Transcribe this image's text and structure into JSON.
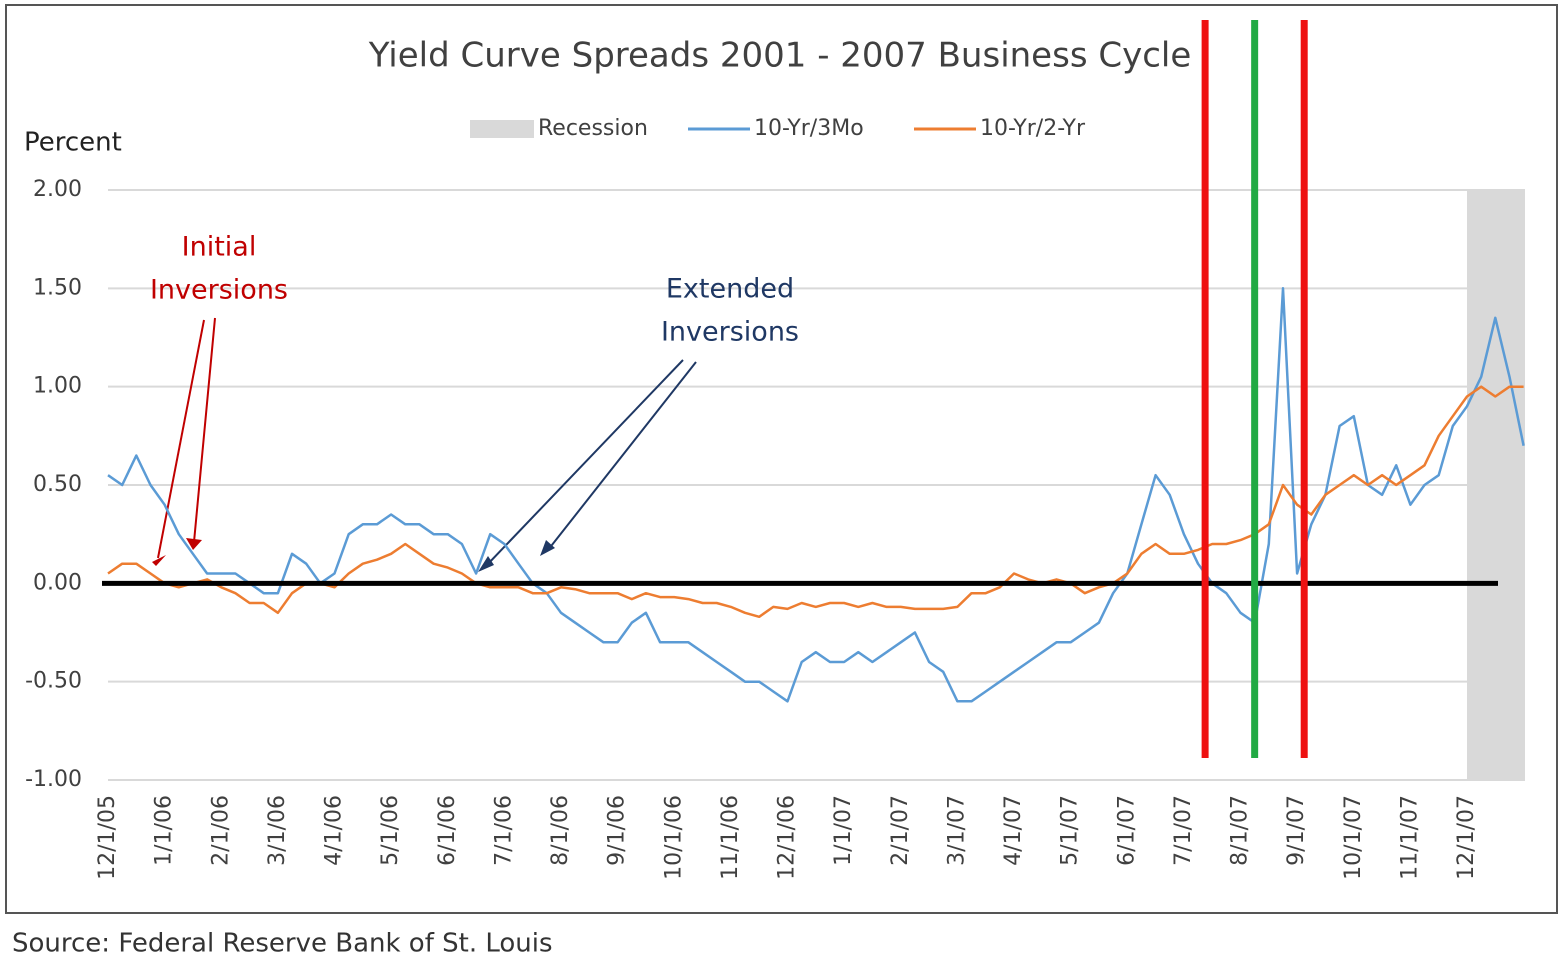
{
  "chart_data": {
    "type": "line",
    "title": "Yield Curve Spreads  2001 - 2007 Business Cycle",
    "y_label": "Percent",
    "source": "Source: Federal Reserve Bank of St. Louis",
    "categories": [
      "12/1/05",
      null,
      null,
      null,
      "1/1/06",
      null,
      null,
      null,
      "2/1/06",
      null,
      null,
      null,
      "3/1/06",
      null,
      null,
      null,
      "4/1/06",
      null,
      null,
      null,
      "5/1/06",
      null,
      null,
      null,
      "6/1/06",
      null,
      null,
      null,
      "7/1/06",
      null,
      null,
      null,
      "8/1/06",
      null,
      null,
      null,
      "9/1/06",
      null,
      null,
      null,
      "10/1/06",
      null,
      null,
      null,
      "11/1/06",
      null,
      null,
      null,
      "12/1/06",
      null,
      null,
      null,
      "1/1/07",
      null,
      null,
      null,
      "2/1/07",
      null,
      null,
      null,
      "3/1/07",
      null,
      null,
      null,
      "4/1/07",
      null,
      null,
      null,
      "5/1/07",
      null,
      null,
      null,
      "6/1/07",
      null,
      null,
      null,
      "7/1/07",
      null,
      null,
      null,
      "8/1/07",
      null,
      null,
      null,
      "9/1/07",
      null,
      null,
      null,
      "10/1/07",
      null,
      null,
      null,
      "11/1/07",
      null,
      null,
      null,
      "12/1/07",
      null,
      null,
      null,
      null
    ],
    "series": [
      {
        "name": "10-Yr/3Mo",
        "color": "#5b9bd5",
        "values": [
          0.55,
          0.5,
          0.65,
          0.5,
          0.4,
          0.25,
          0.15,
          0.05,
          0.05,
          0.05,
          0.0,
          -0.05,
          -0.05,
          0.15,
          0.1,
          0.0,
          0.05,
          0.25,
          0.3,
          0.3,
          0.35,
          0.3,
          0.3,
          0.25,
          0.25,
          0.2,
          0.05,
          0.25,
          0.2,
          0.1,
          0.0,
          -0.05,
          -0.15,
          -0.2,
          -0.25,
          -0.3,
          -0.3,
          -0.2,
          -0.15,
          -0.3,
          -0.3,
          -0.3,
          -0.35,
          -0.4,
          -0.45,
          -0.5,
          -0.5,
          -0.55,
          -0.6,
          -0.4,
          -0.35,
          -0.4,
          -0.4,
          -0.35,
          -0.4,
          -0.35,
          -0.3,
          -0.25,
          -0.4,
          -0.45,
          -0.6,
          -0.6,
          -0.55,
          -0.5,
          -0.45,
          -0.4,
          -0.35,
          -0.3,
          -0.3,
          -0.25,
          -0.2,
          -0.05,
          0.05,
          0.3,
          0.55,
          0.45,
          0.25,
          0.1,
          0.0,
          -0.05,
          -0.15,
          -0.2,
          0.2,
          1.5,
          0.05,
          0.3,
          0.45,
          0.8,
          0.85,
          0.5,
          0.45,
          0.6,
          0.4,
          0.5,
          0.55,
          0.8,
          0.9,
          1.05,
          1.35,
          1.05,
          0.7
        ]
      },
      {
        "name": "10-Yr/2-Yr",
        "color": "#ed7d31",
        "values": [
          0.05,
          0.1,
          0.1,
          0.05,
          0.0,
          -0.02,
          0.0,
          0.02,
          -0.02,
          -0.05,
          -0.1,
          -0.1,
          -0.15,
          -0.05,
          0.0,
          0.0,
          -0.02,
          0.05,
          0.1,
          0.12,
          0.15,
          0.2,
          0.15,
          0.1,
          0.08,
          0.05,
          0.0,
          -0.02,
          -0.02,
          -0.02,
          -0.05,
          -0.05,
          -0.02,
          -0.03,
          -0.05,
          -0.05,
          -0.05,
          -0.08,
          -0.05,
          -0.07,
          -0.07,
          -0.08,
          -0.1,
          -0.1,
          -0.12,
          -0.15,
          -0.17,
          -0.12,
          -0.13,
          -0.1,
          -0.12,
          -0.1,
          -0.1,
          -0.12,
          -0.1,
          -0.12,
          -0.12,
          -0.13,
          -0.13,
          -0.13,
          -0.12,
          -0.05,
          -0.05,
          -0.02,
          0.05,
          0.02,
          0.0,
          0.02,
          0.0,
          -0.05,
          -0.02,
          0.0,
          0.05,
          0.15,
          0.2,
          0.15,
          0.15,
          0.17,
          0.2,
          0.2,
          0.22,
          0.25,
          0.3,
          0.5,
          0.4,
          0.35,
          0.45,
          0.5,
          0.55,
          0.5,
          0.55,
          0.5,
          0.55,
          0.6,
          0.75,
          0.85,
          0.95,
          1.0,
          0.95,
          1.0,
          1.0
        ]
      }
    ],
    "recession": {
      "name": "Recession",
      "color": "#d9d9d9",
      "start": "12/1/07"
    },
    "ylim": [
      -1,
      2
    ],
    "yticks": [
      {
        "value": -1,
        "label": "-1.00"
      },
      {
        "value": -0.5,
        "label": "-0.50"
      },
      {
        "value": 0,
        "label": "0.00"
      },
      {
        "value": 0.5,
        "label": "0.50"
      },
      {
        "value": 1,
        "label": "1.00"
      },
      {
        "value": 1.5,
        "label": "1.50"
      },
      {
        "value": 2,
        "label": "2.00"
      }
    ],
    "grid": true,
    "annotations": [
      {
        "lines": [
          "Initial",
          "Inversions"
        ],
        "color": "#c00000"
      },
      {
        "lines": [
          "Extended",
          "Inversions"
        ],
        "color": "#1f3864"
      }
    ],
    "markers": [
      {
        "x_index": 77.5,
        "color": "#ee1111"
      },
      {
        "x_index": 81,
        "color": "#22aa44"
      },
      {
        "x_index": 84.5,
        "color": "#ee1111"
      }
    ]
  }
}
